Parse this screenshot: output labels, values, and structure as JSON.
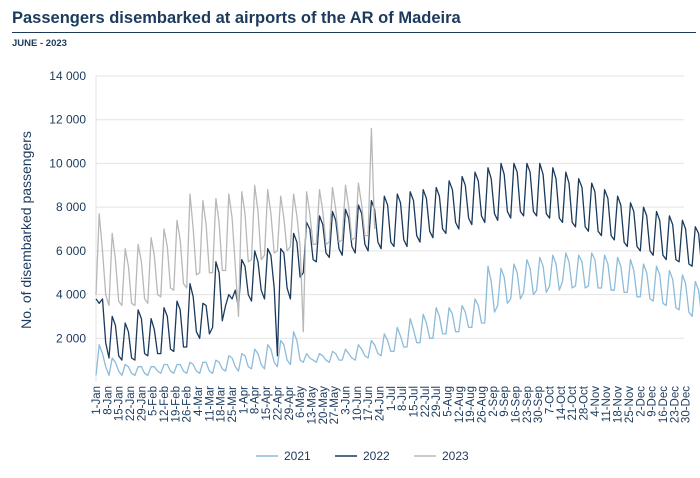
{
  "header": {
    "title": "Passengers disembarked at airports of the AR of Madeira",
    "subtitle": "JUNE - 2023"
  },
  "chart_data": {
    "type": "line",
    "title": "Passengers disembarked at airports of the AR of Madeira",
    "subtitle": "JUNE - 2023",
    "ylabel": "No. of disembarked passengers",
    "xlabel": "",
    "ylim": [
      0,
      14000
    ],
    "yticks": [
      2000,
      4000,
      6000,
      8000,
      10000,
      12000,
      14000
    ],
    "ytick_labels": [
      "2 000",
      "4 000",
      "6 000",
      "8 000",
      "10 000",
      "12 000",
      "14 000"
    ],
    "x_day_range": [
      1,
      364
    ],
    "x_tick_labels": [
      "1-Jan",
      "8-Jan",
      "15-Jan",
      "22-Jan",
      "29-Jan",
      "5-Feb",
      "12-Feb",
      "19-Feb",
      "26-Feb",
      "4-Mar",
      "11-Mar",
      "18-Mar",
      "25-Mar",
      "1-Apr",
      "8-Apr",
      "15-Apr",
      "22-Apr",
      "29-Apr",
      "6-May",
      "13-May",
      "20-May",
      "27-May",
      "3-Jun",
      "10-Jun",
      "17-Jun",
      "24-Jun",
      "1-Jul",
      "8-Jul",
      "15-Jul",
      "22-Jul",
      "29-Jul",
      "5-Aug",
      "12-Aug",
      "19-Aug",
      "26-Aug",
      "2-Sep",
      "9-Sep",
      "16-Sep",
      "23-Sep",
      "30-Sep",
      "7-Oct",
      "14-Oct",
      "21-Oct",
      "28-Oct",
      "4-Nov",
      "11-Nov",
      "18-Nov",
      "25-Nov",
      "2-Dec",
      "9-Dec",
      "16-Dec",
      "23-Dec",
      "30-Dec"
    ],
    "grid": true,
    "legend_position": "bottom",
    "series": [
      {
        "name": "2021",
        "color": "#8dbcda",
        "x_step_days": 2,
        "values": [
          300,
          1700,
          1300,
          700,
          300,
          1100,
          900,
          500,
          300,
          800,
          700,
          400,
          300,
          700,
          700,
          400,
          300,
          700,
          700,
          500,
          400,
          800,
          800,
          500,
          400,
          800,
          800,
          500,
          400,
          900,
          800,
          500,
          400,
          900,
          900,
          500,
          400,
          1000,
          900,
          600,
          500,
          1200,
          1100,
          700,
          500,
          1300,
          1200,
          700,
          600,
          1500,
          1300,
          800,
          600,
          1700,
          1500,
          900,
          700,
          1900,
          1700,
          1000,
          800,
          2300,
          1900,
          1000,
          900,
          1300,
          1100,
          1000,
          900,
          1300,
          1200,
          1000,
          900,
          1400,
          1300,
          1000,
          1000,
          1500,
          1300,
          1100,
          1000,
          1700,
          1500,
          1200,
          1100,
          1900,
          1700,
          1300,
          1200,
          2200,
          1900,
          1400,
          1400,
          2500,
          2100,
          1600,
          1600,
          2900,
          2400,
          1800,
          1800,
          3100,
          2700,
          2000,
          2000,
          3400,
          3000,
          2200,
          2200,
          3400,
          3100,
          2300,
          2300,
          3500,
          3200,
          2500,
          2500,
          3800,
          3500,
          2700,
          2700,
          5300,
          4600,
          3200,
          3500,
          5200,
          4800,
          3600,
          3800,
          5400,
          5000,
          3800,
          4100,
          5600,
          5200,
          4000,
          4200,
          5700,
          5300,
          4100,
          4400,
          5800,
          5400,
          4200,
          4600,
          5900,
          5500,
          4300,
          4400,
          5800,
          5500,
          4300,
          4400,
          5900,
          5600,
          4300,
          4300,
          5800,
          5400,
          4200,
          4200,
          5700,
          5300,
          4100,
          4100,
          5600,
          5100,
          3900,
          3900,
          5400,
          5000,
          3800,
          3700,
          5300,
          4900,
          3600,
          3500,
          5100,
          4700,
          3400,
          3300,
          4900,
          4500,
          3200,
          3000,
          4600,
          4200,
          2900,
          2700,
          4300,
          3900,
          2600,
          2400,
          4000,
          3600,
          2300,
          2100,
          3700,
          3300,
          2000,
          1800,
          3400,
          3000,
          1800,
          1700,
          3300,
          2900,
          2000,
          2000,
          3700,
          3300,
          2500,
          800,
          5800,
          5500,
          4500,
          4200,
          5700,
          5300,
          3600,
          3400
        ]
      },
      {
        "name": "2022",
        "color": "#1b3a5c",
        "x_step_days": 2,
        "values": [
          3800,
          3600,
          3800,
          1800,
          1100,
          3000,
          2600,
          1200,
          1000,
          2700,
          2300,
          1100,
          1000,
          3300,
          2900,
          1300,
          1200,
          2900,
          2400,
          1300,
          1300,
          3400,
          3000,
          1500,
          1400,
          3700,
          3300,
          1600,
          1600,
          4500,
          3900,
          2300,
          2000,
          3600,
          3500,
          2200,
          2500,
          5500,
          5000,
          2800,
          3500,
          4000,
          3800,
          4200,
          3400,
          5600,
          5300,
          4000,
          3700,
          6000,
          5500,
          4200,
          3800,
          6100,
          5800,
          4300,
          1200,
          6100,
          5900,
          4300,
          3800,
          6800,
          6400,
          4800,
          5000,
          7300,
          7000,
          5600,
          5500,
          7600,
          7200,
          5900,
          5700,
          7800,
          7400,
          6100,
          5800,
          7900,
          7500,
          6200,
          5900,
          8100,
          7700,
          6300,
          6000,
          8300,
          7900,
          6400,
          6100,
          8500,
          8100,
          6400,
          6200,
          8600,
          8200,
          6500,
          6200,
          8700,
          8300,
          6700,
          6400,
          8800,
          8400,
          6900,
          6600,
          8900,
          8500,
          7000,
          6800,
          9200,
          8800,
          7300,
          7000,
          9400,
          9000,
          7500,
          7200,
          9600,
          9200,
          7600,
          7300,
          9800,
          9300,
          7700,
          7400,
          10000,
          9500,
          7800,
          7500,
          10000,
          9600,
          7800,
          7600,
          10000,
          9600,
          7800,
          7600,
          10000,
          9500,
          7700,
          7500,
          9800,
          9300,
          7500,
          7300,
          9600,
          9100,
          7300,
          7100,
          9300,
          8900,
          7100,
          6900,
          9100,
          8700,
          6900,
          6700,
          8800,
          8400,
          6700,
          6500,
          8500,
          8100,
          6400,
          6200,
          8200,
          7800,
          6200,
          6000,
          8000,
          7600,
          6000,
          5800,
          7800,
          7400,
          5800,
          5600,
          7600,
          7200,
          5600,
          5500,
          7400,
          7000,
          5400,
          5300,
          7100,
          6800,
          5200,
          5100,
          6900,
          6600,
          5000,
          4900,
          6700,
          6400,
          4800,
          4700,
          6500,
          6200,
          4600,
          4500,
          6400,
          6100,
          4500,
          4400,
          6500,
          6100,
          4600,
          4400,
          7500,
          7000,
          5500,
          8300,
          8100,
          7900,
          6500,
          6400
        ]
      },
      {
        "name": "2023",
        "color": "#b8b8b8",
        "x_step_days": 2,
        "values": [
          4000,
          7700,
          6000,
          4000,
          3500,
          6800,
          5600,
          3700,
          3500,
          6100,
          5300,
          3600,
          3500,
          6300,
          5500,
          3800,
          3600,
          6600,
          5800,
          4000,
          3900,
          7000,
          6200,
          4300,
          4200,
          7400,
          6500,
          4500,
          4300,
          8600,
          7000,
          4900,
          5000,
          8300,
          7200,
          5000,
          5000,
          8400,
          7300,
          5100,
          5100,
          8600,
          7500,
          5300,
          3000,
          8700,
          7700,
          5500,
          5600,
          9000,
          7800,
          5600,
          5800,
          8800,
          7700,
          5900,
          6000,
          8500,
          7500,
          6000,
          6200,
          8600,
          7600,
          6200,
          2300,
          8700,
          7700,
          6300,
          6300,
          8800,
          7800,
          6300,
          6400,
          8900,
          7900,
          6400,
          6500,
          9000,
          8000,
          6500,
          6600,
          9100,
          8100,
          6700,
          6700,
          11600,
          7000
        ]
      }
    ]
  }
}
